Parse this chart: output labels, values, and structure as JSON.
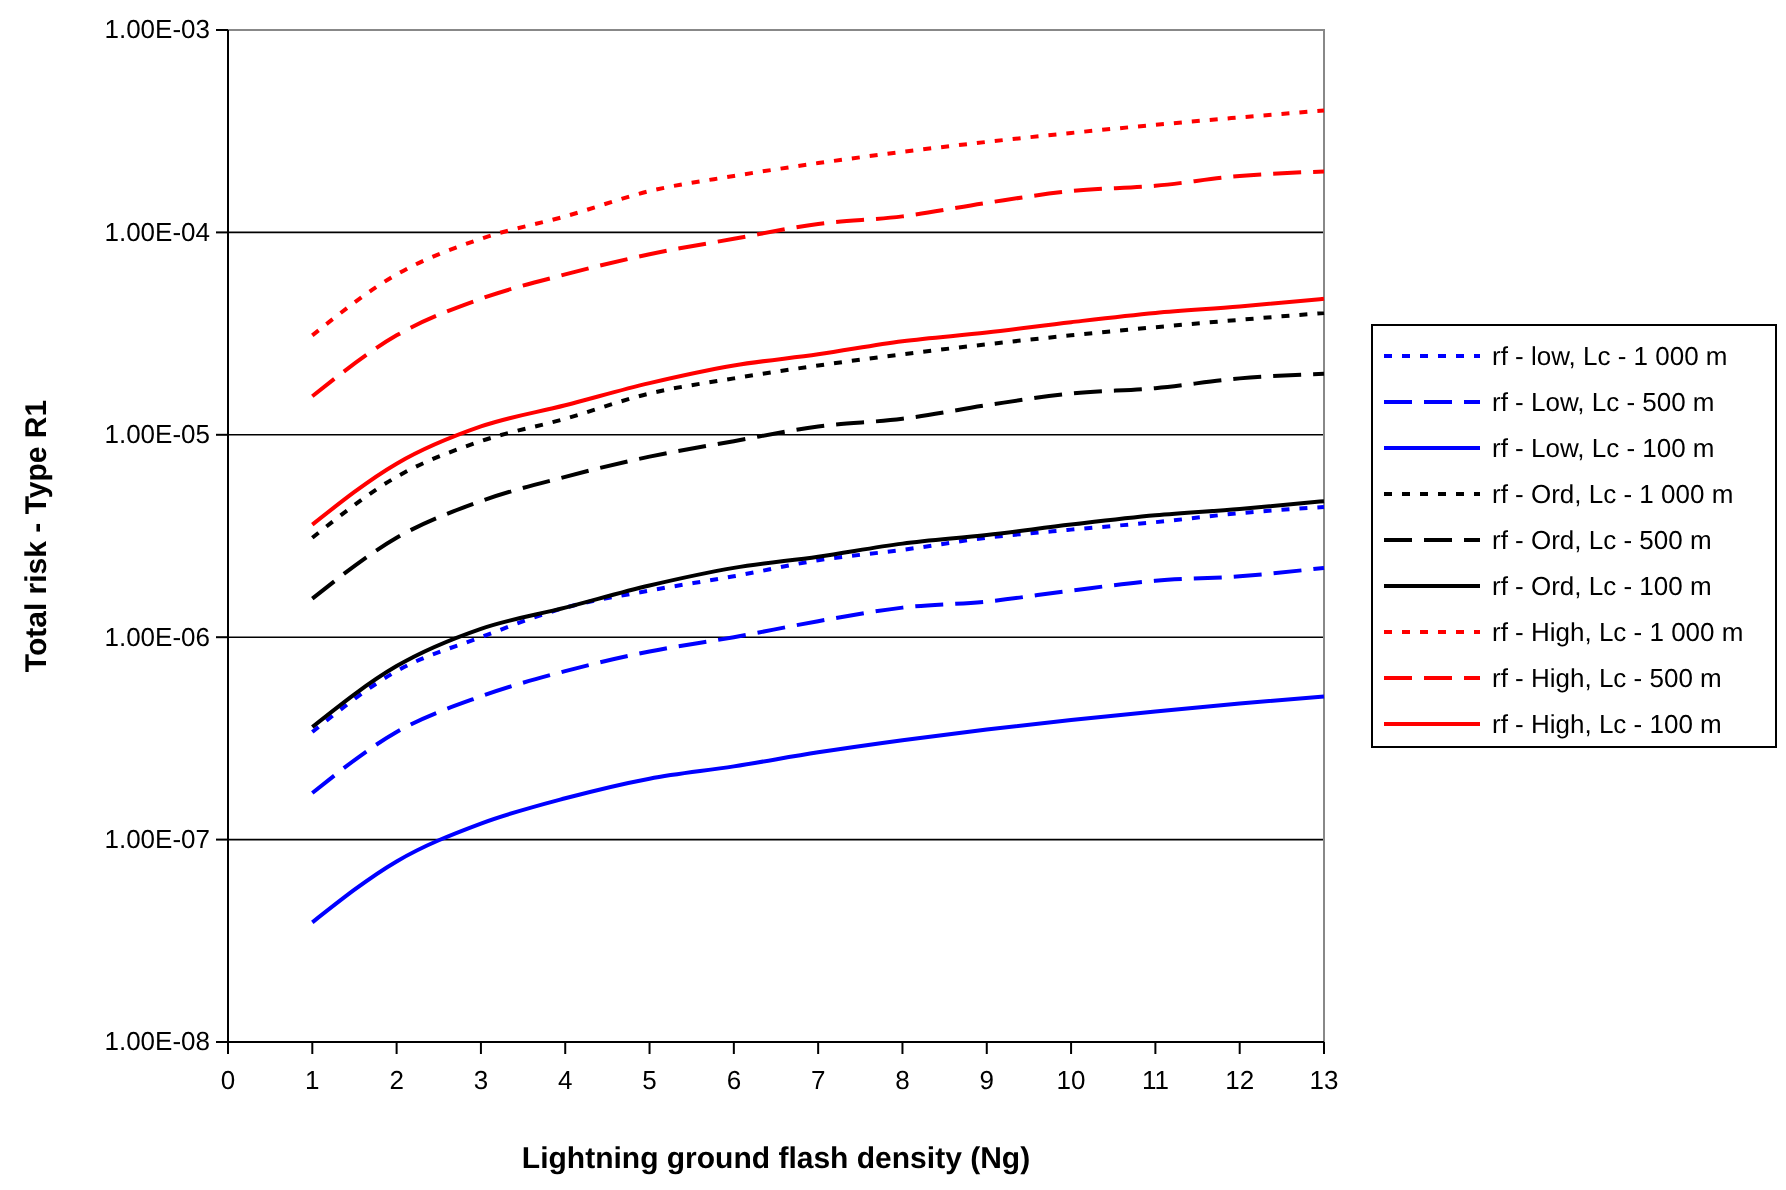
{
  "chart_data": {
    "type": "line",
    "xlabel": "Lightning ground flash density (Ng)",
    "ylabel": "Total risk - Type R1",
    "x": [
      1,
      2,
      3,
      4,
      5,
      6,
      7,
      8,
      9,
      10,
      11,
      12,
      13
    ],
    "xlim": [
      0,
      13
    ],
    "xticks": [
      0,
      1,
      2,
      3,
      4,
      5,
      6,
      7,
      8,
      9,
      10,
      11,
      12,
      13
    ],
    "ylim": [
      1e-08,
      0.001
    ],
    "log": true,
    "yticks": [
      {
        "value": 1e-08,
        "label": "1.00E-08"
      },
      {
        "value": 1e-07,
        "label": "1.00E-07"
      },
      {
        "value": 1e-06,
        "label": "1.00E-06"
      },
      {
        "value": 1e-05,
        "label": "1.00E-05"
      },
      {
        "value": 0.0001,
        "label": "1.00E-04"
      },
      {
        "value": 0.001,
        "label": "1.00E-03"
      }
    ],
    "grid": "y",
    "legend": "right",
    "marker": "none",
    "series": [
      {
        "name": "rf - low, Lc - 1 000 m",
        "color": "#0000ff",
        "line_style": "dotted",
        "values": [
          3.4e-07,
          6.8e-07,
          1e-06,
          1.4e-06,
          1.7e-06,
          2e-06,
          2.4e-06,
          2.7e-06,
          3.1e-06,
          3.4e-06,
          3.7e-06,
          4.1e-06,
          4.4e-06
        ]
      },
      {
        "name": "rf - Low, Lc - 500 m",
        "color": "#0000ff",
        "line_style": "dashed",
        "values": [
          1.7e-07,
          3.4e-07,
          5.1e-07,
          6.8e-07,
          8.5e-07,
          1e-06,
          1.2e-06,
          1.4e-06,
          1.5e-06,
          1.7e-06,
          1.9e-06,
          2e-06,
          2.2e-06
        ]
      },
      {
        "name": "rf - Low, Lc - 100 m",
        "color": "#0000ff",
        "line_style": "solid",
        "values": [
          3.9e-08,
          7.8e-08,
          1.2e-07,
          1.6e-07,
          2e-07,
          2.3e-07,
          2.7e-07,
          3.1e-07,
          3.5e-07,
          3.9e-07,
          4.3e-07,
          4.7e-07,
          5.1e-07
        ]
      },
      {
        "name": "rf - Ord, Lc - 1 000 m",
        "color": "#000000",
        "line_style": "dotted",
        "values": [
          3.1e-06,
          6.2e-06,
          9.3e-06,
          1.2e-05,
          1.6e-05,
          1.9e-05,
          2.2e-05,
          2.5e-05,
          2.8e-05,
          3.1e-05,
          3.4e-05,
          3.7e-05,
          4e-05
        ]
      },
      {
        "name": "rf - Ord, Lc - 500 m",
        "color": "#000000",
        "line_style": "dashed",
        "values": [
          1.55e-06,
          3.1e-06,
          4.7e-06,
          6.2e-06,
          7.8e-06,
          9.3e-06,
          1.1e-05,
          1.2e-05,
          1.4e-05,
          1.6e-05,
          1.7e-05,
          1.9e-05,
          2e-05
        ]
      },
      {
        "name": "rf - Ord, Lc - 100 m",
        "color": "#000000",
        "line_style": "solid",
        "values": [
          3.6e-07,
          7.2e-07,
          1.1e-06,
          1.4e-06,
          1.8e-06,
          2.2e-06,
          2.5e-06,
          2.9e-06,
          3.2e-06,
          3.6e-06,
          4e-06,
          4.3e-06,
          4.7e-06
        ]
      },
      {
        "name": "rf - High, Lc - 1 000 m",
        "color": "#ff0000",
        "line_style": "dotted",
        "values": [
          3.1e-05,
          6.2e-05,
          9.3e-05,
          0.00012,
          0.00016,
          0.00019,
          0.00022,
          0.00025,
          0.00028,
          0.00031,
          0.00034,
          0.00037,
          0.0004
        ]
      },
      {
        "name": "rf - High, Lc - 500 m",
        "color": "#ff0000",
        "line_style": "dashed",
        "values": [
          1.55e-05,
          3.1e-05,
          4.7e-05,
          6.2e-05,
          7.8e-05,
          9.3e-05,
          0.00011,
          0.00012,
          0.00014,
          0.00016,
          0.00017,
          0.00019,
          0.0002
        ]
      },
      {
        "name": "rf - High, Lc - 100 m",
        "color": "#ff0000",
        "line_style": "solid",
        "values": [
          3.6e-06,
          7.2e-06,
          1.1e-05,
          1.4e-05,
          1.8e-05,
          2.2e-05,
          2.5e-05,
          2.9e-05,
          3.2e-05,
          3.6e-05,
          4e-05,
          4.3e-05,
          4.7e-05
        ]
      }
    ]
  }
}
